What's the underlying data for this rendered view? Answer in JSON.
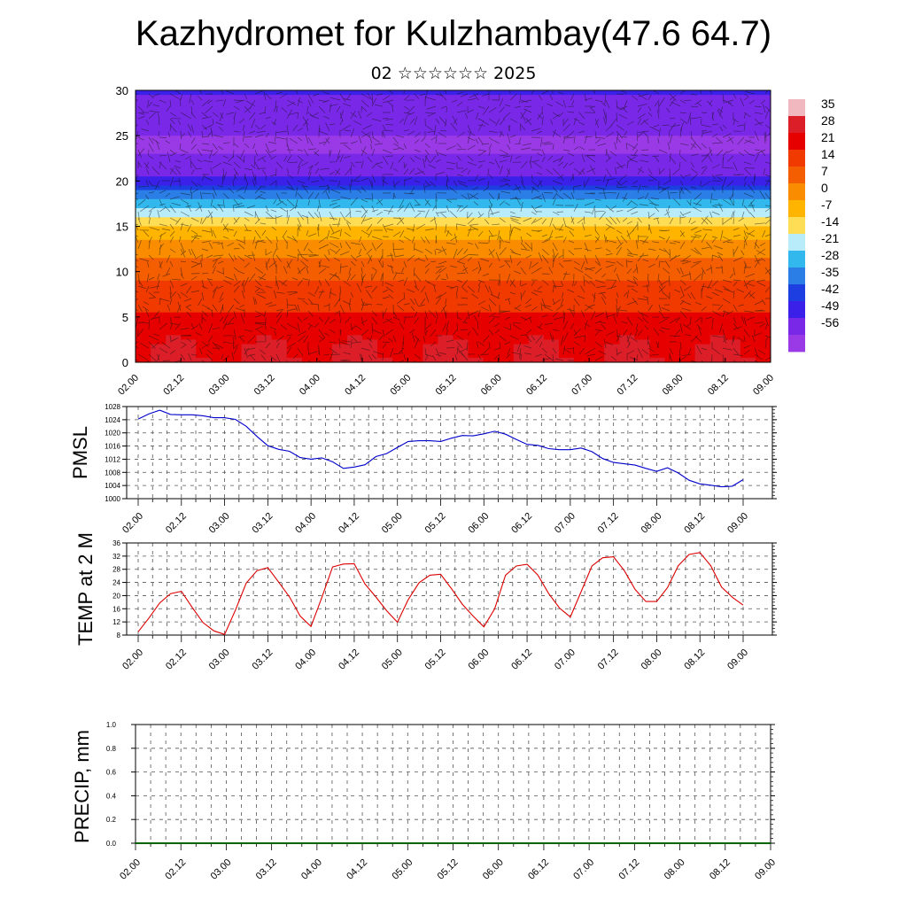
{
  "title": "Kazhydromet for Kulzhambay(47.6 64.7)",
  "subtitle": "02 ☆☆☆☆☆☆ 2025",
  "time_labels": [
    "02.00",
    "02.12",
    "03.00",
    "03.12",
    "04.00",
    "04.12",
    "05.00",
    "05.12",
    "06.00",
    "06.12",
    "07.00",
    "07.12",
    "08.00",
    "08.12",
    "09.00"
  ],
  "colors": {
    "pmsl_line": "#0000cc",
    "temp_line": "#dd0000",
    "precip_base": "#006400",
    "grid": "#555555"
  },
  "chart_data": [
    {
      "type": "heatmap",
      "name": "vertical-temperature-wind-cross-section",
      "ylim": [
        0,
        30
      ],
      "yticks": [
        0,
        5,
        10,
        15,
        20,
        25,
        30
      ],
      "colorbar_labels": [
        "35",
        "28",
        "21",
        "14",
        "7",
        "0",
        "-7",
        "-14",
        "-21",
        "-28",
        "-35",
        "-42",
        "-49",
        "-56"
      ],
      "colorbar_colors": [
        "#f2b8bf",
        "#dc1e28",
        "#e60000",
        "#f03a00",
        "#f55e00",
        "#fa8c00",
        "#ffb400",
        "#ffdd55",
        "#b8ecfa",
        "#33b8ee",
        "#2a7ee6",
        "#1d3ee0",
        "#3a20e8",
        "#7a28e8",
        "#9a3ae6"
      ],
      "temperature_profile_by_height": [
        [
          0,
          30
        ],
        [
          3,
          26
        ],
        [
          6,
          20
        ],
        [
          9,
          14
        ],
        [
          12,
          6
        ],
        [
          15,
          -8
        ],
        [
          18,
          -28
        ],
        [
          21,
          -52
        ],
        [
          23,
          -56
        ],
        [
          25,
          -56
        ],
        [
          27,
          -52
        ],
        [
          30,
          -48
        ]
      ]
    },
    {
      "type": "line",
      "ylabel": "PMSL",
      "ylim": [
        1000,
        1028
      ],
      "yticks": [
        1000,
        1004,
        1008,
        1012,
        1016,
        1020,
        1024,
        1028
      ],
      "series": [
        {
          "values": [
            1024.2,
            1025.8,
            1026.9,
            1025.6,
            1025.5,
            1025.5,
            1025.2,
            1024.6,
            1024.6,
            1024.1,
            1022,
            1018.9,
            1016.1,
            1015,
            1014.4,
            1012.5,
            1012,
            1012.4,
            1011.2,
            1009.2,
            1009.6,
            1010.3,
            1012.8,
            1013.7,
            1015.6,
            1017.4,
            1017.6,
            1017.6,
            1017.4,
            1018.4,
            1019.2,
            1019.1,
            1019.7,
            1020.5,
            1019.6,
            1018,
            1016.5,
            1016.2,
            1015.2,
            1014.9,
            1014.9,
            1015.4,
            1014.3,
            1012.2,
            1011,
            1010.6,
            1010.2,
            1009.2,
            1008.3,
            1009.4,
            1007.8,
            1005.6,
            1004.5,
            1004.1,
            1003.6,
            1003.8,
            1005.8
          ]
        }
      ]
    },
    {
      "type": "line",
      "ylabel": "TEMP at 2 M",
      "ylim": [
        8,
        36
      ],
      "yticks": [
        8,
        12,
        16,
        20,
        24,
        28,
        32,
        36
      ],
      "series": [
        {
          "values": [
            9,
            13.2,
            17.8,
            20.6,
            21.3,
            16.4,
            11.8,
            9.3,
            8.2,
            15.6,
            23.8,
            27.6,
            28.5,
            24.1,
            19.6,
            13.8,
            10.6,
            19.4,
            28.7,
            29.6,
            29.7,
            23.5,
            19.6,
            15.4,
            11.9,
            18.8,
            23.9,
            26.2,
            26.5,
            22.1,
            17.4,
            13.8,
            10.5,
            16,
            26.2,
            29,
            29.5,
            26.2,
            20.6,
            16.2,
            13.5,
            21.2,
            29,
            31.5,
            31.8,
            27.6,
            21.9,
            18.2,
            18.2,
            22.4,
            29.1,
            32.5,
            33.1,
            29.1,
            22.6,
            19.5,
            17.1
          ]
        }
      ]
    },
    {
      "type": "line",
      "ylabel": "PRECIP, mm",
      "ylim": [
        0,
        1
      ],
      "yticks": [
        "0.0",
        "0.2",
        "0.4",
        "0.6",
        "0.8",
        "1.0"
      ],
      "series": [
        {
          "values": [
            0,
            0,
            0,
            0,
            0,
            0,
            0,
            0,
            0,
            0,
            0,
            0,
            0,
            0,
            0,
            0,
            0,
            0,
            0,
            0,
            0,
            0,
            0,
            0,
            0,
            0,
            0,
            0,
            0,
            0,
            0,
            0,
            0,
            0,
            0,
            0,
            0,
            0,
            0,
            0,
            0,
            0,
            0,
            0,
            0,
            0,
            0,
            0,
            0,
            0,
            0,
            0,
            0,
            0,
            0,
            0,
            0
          ]
        }
      ]
    }
  ]
}
